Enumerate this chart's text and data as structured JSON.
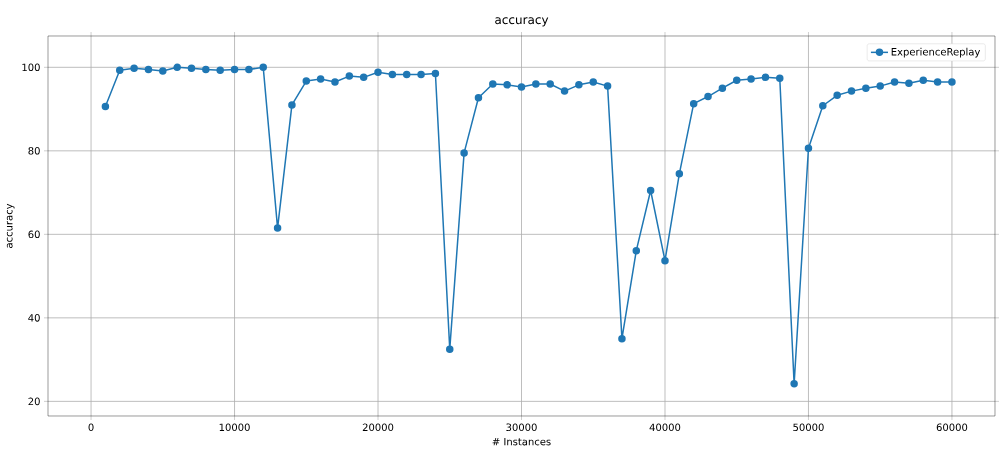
{
  "chart_data": {
    "type": "line",
    "title": "accuracy",
    "xlabel": "# Instances",
    "ylabel": "accuracy",
    "x": [
      1000,
      2000,
      3000,
      4000,
      5000,
      6000,
      7000,
      8000,
      9000,
      10000,
      11000,
      12000,
      13000,
      14000,
      15000,
      16000,
      17000,
      18000,
      19000,
      20000,
      21000,
      22000,
      23000,
      24000,
      25000,
      26000,
      27000,
      28000,
      29000,
      30000,
      31000,
      32000,
      33000,
      34000,
      35000,
      36000,
      37000,
      38000,
      39000,
      40000,
      41000,
      42000,
      43000,
      44000,
      45000,
      46000,
      47000,
      48000,
      49000,
      50000,
      51000,
      52000,
      53000,
      54000,
      55000,
      56000,
      57000,
      58000,
      59000,
      60000
    ],
    "series": [
      {
        "name": "ExperienceReplay",
        "color": "#1f77b4",
        "values": [
          90.6,
          99.3,
          99.8,
          99.5,
          99.1,
          100,
          99.8,
          99.5,
          99.3,
          99.5,
          99.5,
          100,
          61.5,
          91,
          96.7,
          97.2,
          96.5,
          97.9,
          97.6,
          98.8,
          98.3,
          98.3,
          98.3,
          98.5,
          32.5,
          79.5,
          92.7,
          96,
          95.8,
          95.3,
          96,
          96,
          94.3,
          95.8,
          96.5,
          95.5,
          35,
          56.1,
          70.5,
          53.7,
          74.5,
          91.3,
          93,
          95,
          96.9,
          97.2,
          97.6,
          97.4,
          24.2,
          80.6,
          90.8,
          93.3,
          94.3,
          95,
          95.5,
          96.5,
          96.2,
          96.9,
          96.5,
          96.5
        ]
      }
    ],
    "xlim": [
      -3000,
      63000
    ],
    "ylim": [
      16.5,
      107.5
    ],
    "xticks": [
      0,
      10000,
      20000,
      30000,
      40000,
      50000,
      60000
    ],
    "yticks": [
      20,
      40,
      60,
      80,
      100
    ],
    "grid": true,
    "legend": "top right",
    "marker": "circle",
    "line_style": "solid"
  }
}
